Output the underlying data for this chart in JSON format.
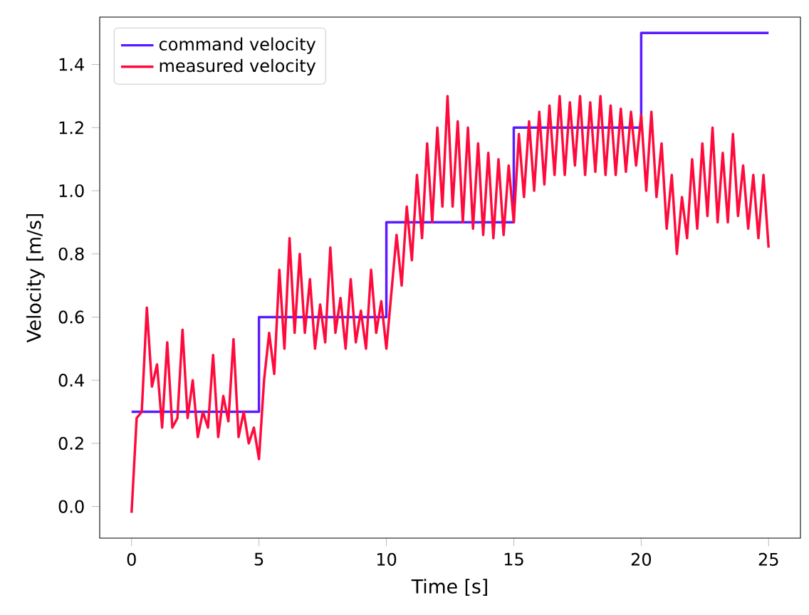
{
  "chart_data": {
    "type": "line",
    "xlabel": "Time [s]",
    "ylabel": "Velocity [m/s]",
    "xlim": [
      -1.25,
      26.25
    ],
    "ylim": [
      -0.1,
      1.55
    ],
    "xticks": [
      0,
      5,
      10,
      15,
      20,
      25
    ],
    "yticks": [
      {
        "value": 0,
        "label": "0.0"
      },
      {
        "value": 0.2,
        "label": "0.2"
      },
      {
        "value": 0.4,
        "label": "0.4"
      },
      {
        "value": 0.6,
        "label": "0.6"
      },
      {
        "value": 0.8,
        "label": "0.8"
      },
      {
        "value": 1.0,
        "label": "1.0"
      },
      {
        "value": 1.2,
        "label": "1.2"
      },
      {
        "value": 1.4,
        "label": "1.4"
      }
    ],
    "grid": false,
    "legend": "top left",
    "marker": "none",
    "line_style": "solid",
    "series": [
      {
        "name": "command velocity",
        "type": "step",
        "color": "#5a1cff",
        "x": [
          0,
          5,
          10,
          15,
          20,
          25
        ],
        "values": [
          0.3,
          0.6,
          0.9,
          1.2,
          1.5,
          1.5
        ]
      },
      {
        "name": "measured velocity",
        "type": "line",
        "color": "#ff0a3c",
        "x": [
          0,
          0.2,
          0.4,
          0.6,
          0.8,
          1.0,
          1.2,
          1.4,
          1.6,
          1.8,
          2.0,
          2.2,
          2.4,
          2.6,
          2.8,
          3.0,
          3.2,
          3.4,
          3.6,
          3.8,
          4.0,
          4.2,
          4.4,
          4.6,
          4.8,
          5.0,
          5.2,
          5.4,
          5.6,
          5.8,
          6.0,
          6.2,
          6.4,
          6.6,
          6.8,
          7.0,
          7.2,
          7.4,
          7.6,
          7.8,
          8.0,
          8.2,
          8.4,
          8.6,
          8.8,
          9.0,
          9.2,
          9.4,
          9.6,
          9.8,
          10.0,
          10.2,
          10.4,
          10.6,
          10.8,
          11.0,
          11.2,
          11.4,
          11.6,
          11.8,
          12.0,
          12.2,
          12.4,
          12.6,
          12.8,
          13.0,
          13.2,
          13.4,
          13.6,
          13.8,
          14.0,
          14.2,
          14.4,
          14.6,
          14.8,
          15.0,
          15.2,
          15.4,
          15.6,
          15.8,
          16.0,
          16.2,
          16.4,
          16.6,
          16.8,
          17.0,
          17.2,
          17.4,
          17.6,
          17.8,
          18.0,
          18.2,
          18.4,
          18.6,
          18.8,
          19.0,
          19.2,
          19.4,
          19.6,
          19.8,
          20.0,
          20.2,
          20.4,
          20.6,
          20.8,
          21.0,
          21.2,
          21.4,
          21.6,
          21.8,
          22.0,
          22.2,
          22.4,
          22.6,
          22.8,
          23.0,
          23.2,
          23.4,
          23.6,
          23.8,
          24.0,
          24.2,
          24.4,
          24.6,
          24.8,
          25.0
        ],
        "values": [
          -0.02,
          0.28,
          0.3,
          0.63,
          0.38,
          0.45,
          0.25,
          0.52,
          0.25,
          0.28,
          0.56,
          0.28,
          0.4,
          0.22,
          0.3,
          0.25,
          0.48,
          0.22,
          0.35,
          0.27,
          0.53,
          0.22,
          0.3,
          0.2,
          0.25,
          0.15,
          0.4,
          0.55,
          0.42,
          0.75,
          0.5,
          0.85,
          0.55,
          0.8,
          0.55,
          0.72,
          0.5,
          0.64,
          0.52,
          0.82,
          0.55,
          0.66,
          0.5,
          0.72,
          0.52,
          0.62,
          0.5,
          0.75,
          0.55,
          0.65,
          0.5,
          0.68,
          0.86,
          0.7,
          0.95,
          0.78,
          1.05,
          0.85,
          1.15,
          0.9,
          1.2,
          0.95,
          1.3,
          0.95,
          1.22,
          0.9,
          1.2,
          0.88,
          1.15,
          0.86,
          1.12,
          0.85,
          1.1,
          0.86,
          1.08,
          0.9,
          1.18,
          0.98,
          1.22,
          1.0,
          1.25,
          1.02,
          1.27,
          1.05,
          1.3,
          1.05,
          1.28,
          1.08,
          1.3,
          1.05,
          1.28,
          1.06,
          1.3,
          1.05,
          1.27,
          1.05,
          1.26,
          1.06,
          1.25,
          1.08,
          1.24,
          1.0,
          1.25,
          0.98,
          1.15,
          0.88,
          1.05,
          0.8,
          0.98,
          0.85,
          1.1,
          0.88,
          1.15,
          0.92,
          1.2,
          0.9,
          1.12,
          0.9,
          1.18,
          0.92,
          1.08,
          0.88,
          1.05,
          0.85,
          1.05,
          0.82
        ]
      }
    ]
  }
}
